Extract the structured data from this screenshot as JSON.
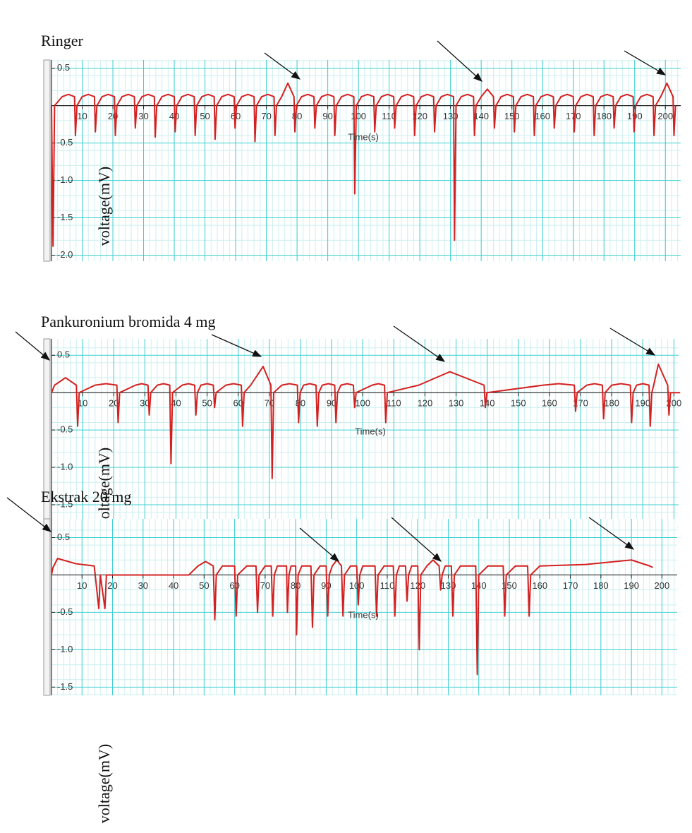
{
  "chart_data": [
    {
      "type": "line",
      "title": "Ringer",
      "x_label": "Time(s)",
      "y_label": "voltage(mV)",
      "color": "#d42020",
      "grid": true,
      "xlim": [
        0,
        205
      ],
      "ylim": [
        -2.08,
        0.61
      ],
      "xticks": [
        10,
        20,
        30,
        40,
        50,
        60,
        70,
        80,
        90,
        100,
        110,
        120,
        130,
        140,
        150,
        160,
        170,
        180,
        190,
        200
      ],
      "yticks": [
        0.5,
        -0.5,
        {
          "value": -1,
          "label": "-1.0"
        },
        -1.5,
        {
          "value": -2,
          "label": "-2.0"
        }
      ],
      "x": [
        0,
        0.5,
        1,
        3.5,
        5.5,
        7.5,
        7.8,
        8.3,
        10,
        12,
        14,
        14.3,
        14.8,
        16.5,
        18.5,
        20.5,
        20.8,
        21.3,
        23,
        25,
        27,
        27.3,
        27.8,
        29.5,
        31.5,
        33.5,
        33.8,
        34.3,
        36,
        38,
        40,
        40.3,
        40.8,
        42.5,
        44.5,
        46.5,
        46.8,
        47.3,
        49,
        51,
        53,
        53.3,
        53.8,
        55.5,
        57.5,
        59.5,
        59.8,
        60.3,
        62,
        64,
        66,
        66.3,
        66.8,
        68.5,
        70.5,
        72.5,
        72.8,
        73.3,
        75,
        77,
        79,
        79.3,
        79.8,
        81.5,
        83.5,
        85.5,
        85.8,
        86.3,
        88,
        90,
        92,
        92.3,
        92.8,
        94.5,
        96.5,
        98.5,
        98.8,
        99.3,
        101,
        103,
        105,
        105.3,
        105.8,
        107.5,
        109.5,
        111.5,
        111.8,
        112.3,
        114,
        116,
        118,
        118.3,
        118.8,
        120.5,
        122.5,
        124.5,
        124.8,
        125.3,
        127,
        129,
        131,
        131.3,
        131.8,
        133.5,
        135.5,
        137.5,
        137.8,
        138.3,
        140,
        142,
        144,
        144.3,
        144.8,
        146.5,
        148.5,
        150.5,
        150.8,
        151.3,
        153,
        155,
        157,
        157.3,
        157.8,
        159.5,
        161.5,
        163.5,
        163.8,
        164.3,
        166,
        168,
        170,
        170.3,
        170.8,
        172.5,
        174.5,
        176.5,
        176.8,
        177.3,
        179,
        181,
        183,
        183.3,
        183.8,
        185.5,
        187.5,
        189.5,
        189.8,
        190.3,
        192,
        194,
        196,
        196.3,
        196.8,
        198.5,
        200.5,
        202.5,
        202.8,
        203.3
      ],
      "values": [
        0,
        -1.88,
        0,
        0.12,
        0.15,
        0.12,
        -0.4,
        0,
        0.12,
        0.15,
        0.12,
        -0.35,
        0,
        0.12,
        0.15,
        0.12,
        -0.4,
        0,
        0.12,
        0.15,
        0.12,
        -0.3,
        0,
        0.12,
        0.15,
        0.12,
        -0.42,
        0,
        0.12,
        0.15,
        0.12,
        -0.35,
        0,
        0.12,
        0.15,
        0.12,
        -0.4,
        0,
        0.12,
        0.15,
        0.12,
        -0.45,
        0,
        0.12,
        0.15,
        0.12,
        -0.3,
        0,
        0.12,
        0.15,
        0.12,
        -0.48,
        0,
        0.12,
        0.15,
        0.12,
        -0.4,
        0,
        0.12,
        0.3,
        0.12,
        -0.35,
        0,
        0.12,
        0.15,
        0.12,
        -0.3,
        0,
        0.12,
        0.15,
        0.12,
        -0.4,
        0,
        0.12,
        0.15,
        0.12,
        -1.18,
        0,
        0.12,
        0.15,
        0.12,
        -0.35,
        0,
        0.12,
        0.15,
        0.12,
        -0.3,
        0,
        0.12,
        0.15,
        0.12,
        -0.4,
        0,
        0.12,
        0.15,
        0.12,
        -0.35,
        0,
        0.12,
        0.15,
        0.12,
        -1.8,
        0,
        0.12,
        0.15,
        0.12,
        -0.4,
        0,
        0.12,
        0.22,
        0.12,
        -0.3,
        0,
        0.12,
        0.15,
        0.12,
        -0.35,
        0,
        0.12,
        0.15,
        0.12,
        -0.4,
        0,
        0.12,
        0.15,
        0.12,
        -0.3,
        0,
        0.12,
        0.15,
        0.12,
        -0.35,
        0,
        0.12,
        0.15,
        0.12,
        -0.4,
        0,
        0.12,
        0.15,
        0.12,
        -0.3,
        0,
        0.12,
        0.15,
        0.12,
        -0.35,
        0,
        0.12,
        0.15,
        0.12,
        -0.4,
        0,
        0.12,
        0.3,
        0.12,
        -0.4,
        0
      ]
    },
    {
      "type": "line",
      "title": "Pankuronium bromida 4 mg",
      "x_label": "Time(s)",
      "y_label": "voltage(mV)",
      "color": "#d42020",
      "grid": true,
      "xlim": [
        0,
        201.5
      ],
      "ylim": [
        -1.85,
        0.72
      ],
      "xticks": [
        10,
        20,
        30,
        40,
        50,
        60,
        70,
        80,
        90,
        100,
        110,
        120,
        130,
        140,
        150,
        160,
        170,
        180,
        190,
        200
      ],
      "yticks": [
        0.5,
        -0.5,
        {
          "value": -1,
          "label": "-1.0"
        },
        -1.5
      ],
      "x": [
        0,
        1,
        4.5,
        8,
        8.4,
        8.9,
        14,
        17.5,
        21,
        21.4,
        21.9,
        27,
        29,
        31,
        31.4,
        31.9,
        34,
        36,
        38,
        38.4,
        38.9,
        42,
        44,
        46,
        46.4,
        46.9,
        48,
        50,
        52,
        52.4,
        52.9,
        56,
        58.5,
        61,
        61.4,
        61.9,
        64,
        68,
        70.5,
        70.9,
        71.4,
        74,
        76.5,
        79,
        79.4,
        79.9,
        81,
        83,
        85,
        85.4,
        85.9,
        87,
        89,
        91,
        91.4,
        91.9,
        93,
        95,
        97,
        97.4,
        97.9,
        103,
        105,
        107,
        107.4,
        107.9,
        118,
        128,
        139,
        139.4,
        139.9,
        158,
        163,
        168,
        168.4,
        168.9,
        172,
        174.5,
        177,
        177.4,
        177.9,
        180,
        183,
        186,
        186.4,
        186.9,
        188,
        190,
        192,
        192.4,
        192.9,
        193.5,
        195,
        198,
        198.4,
        198.9,
        202
      ],
      "values": [
        0,
        0.1,
        0.2,
        0.1,
        -0.45,
        0,
        0.1,
        0.12,
        0.1,
        -0.4,
        0,
        0.1,
        0.12,
        0.1,
        -0.3,
        0,
        0.1,
        0.12,
        0.1,
        -0.95,
        0,
        0.1,
        0.12,
        0.1,
        -0.3,
        0,
        0.1,
        0.12,
        0.1,
        -0.2,
        0,
        0.1,
        0.12,
        0.1,
        -0.45,
        0,
        0.1,
        0.35,
        0.1,
        -1.15,
        0,
        0.1,
        0.12,
        0.1,
        -0.4,
        0,
        0.1,
        0.12,
        0.1,
        -0.45,
        0,
        0.1,
        0.12,
        0.1,
        -0.4,
        0,
        0.1,
        0.12,
        0.1,
        -0.2,
        0,
        0.1,
        0.12,
        0.1,
        -0.4,
        0,
        0.1,
        0.28,
        0.1,
        -0.2,
        0,
        0.1,
        0.12,
        0.1,
        -0.25,
        0,
        0.1,
        0.12,
        0.1,
        -0.35,
        0,
        0.1,
        0.12,
        0.1,
        -0.4,
        0,
        0.1,
        0.12,
        0.1,
        -0.45,
        0,
        0.1,
        0.38,
        0.1,
        -0.3,
        0,
        0
      ]
    },
    {
      "type": "line",
      "title": "Ekstrak 20 mg",
      "x_label": "Time(s)",
      "y_label": "voltage(mV)",
      "color": "#d42020",
      "grid": true,
      "xlim": [
        0,
        205
      ],
      "ylim": [
        -1.61,
        0.75
      ],
      "xticks": [
        10,
        20,
        30,
        40,
        50,
        60,
        70,
        80,
        90,
        100,
        110,
        120,
        130,
        140,
        150,
        160,
        170,
        180,
        190,
        200
      ],
      "yticks": [
        0.5,
        -0.5,
        {
          "value": -1,
          "label": "-1.0"
        },
        -1.5
      ],
      "x": [
        0,
        0.5,
        2,
        8,
        14,
        15.5,
        16,
        17.5,
        18,
        45,
        48,
        50.5,
        53,
        53.5,
        54,
        56,
        58,
        60,
        60.5,
        61,
        64,
        65.5,
        67,
        67.5,
        68,
        70,
        71,
        72,
        72.5,
        73,
        74,
        75.5,
        77,
        77.3,
        77.8,
        78.5,
        79.3,
        80,
        80.3,
        80.8,
        82,
        83.5,
        85,
        85.5,
        86,
        88,
        89,
        90,
        90.5,
        91,
        92,
        93.5,
        95,
        95.5,
        96,
        98,
        99,
        100,
        100.5,
        101,
        102,
        104,
        106,
        106.5,
        107,
        109,
        110.5,
        112,
        112.5,
        113,
        114,
        115,
        116,
        116.5,
        117,
        118,
        119,
        120,
        120.5,
        121,
        123,
        125,
        127,
        127.5,
        128,
        129,
        130,
        131,
        131.5,
        132,
        134,
        136.5,
        139,
        139.5,
        140,
        143,
        145.5,
        148,
        148.5,
        149,
        152,
        154,
        156,
        156.5,
        157,
        160,
        175,
        190,
        196,
        197
      ],
      "values": [
        0,
        0.1,
        0.22,
        0.15,
        0.12,
        -0.45,
        0,
        -0.45,
        0,
        0,
        0.12,
        0.18,
        0.12,
        -0.6,
        0,
        0.12,
        0.12,
        0.12,
        -0.55,
        0,
        0.12,
        0.12,
        0.12,
        -0.5,
        0,
        0.12,
        0.12,
        0.12,
        -0.55,
        0,
        0.12,
        0.12,
        0.12,
        -0.5,
        0,
        0.12,
        0.12,
        0.12,
        -0.8,
        0,
        0.12,
        0.12,
        0.12,
        -0.7,
        0,
        0.12,
        0.12,
        0.12,
        -0.55,
        0,
        0.12,
        0.2,
        0.12,
        -0.55,
        0,
        0.12,
        0.12,
        0.12,
        -0.4,
        0,
        0.12,
        0.12,
        0.12,
        -0.55,
        0,
        0.12,
        0.12,
        0.12,
        -0.55,
        0,
        0.12,
        0.12,
        0.12,
        -0.35,
        0,
        0.12,
        0.12,
        0.12,
        -1,
        0,
        0.12,
        0.2,
        0.12,
        -0.2,
        0,
        0.12,
        0.12,
        0.12,
        -0.55,
        0,
        0.12,
        0.12,
        0.12,
        -1.33,
        0,
        0.12,
        0.12,
        0.12,
        -0.55,
        0,
        0.12,
        0.12,
        0.12,
        -0.55,
        0,
        0.12,
        0.14,
        0.2,
        0.12,
        0.1
      ]
    }
  ]
}
